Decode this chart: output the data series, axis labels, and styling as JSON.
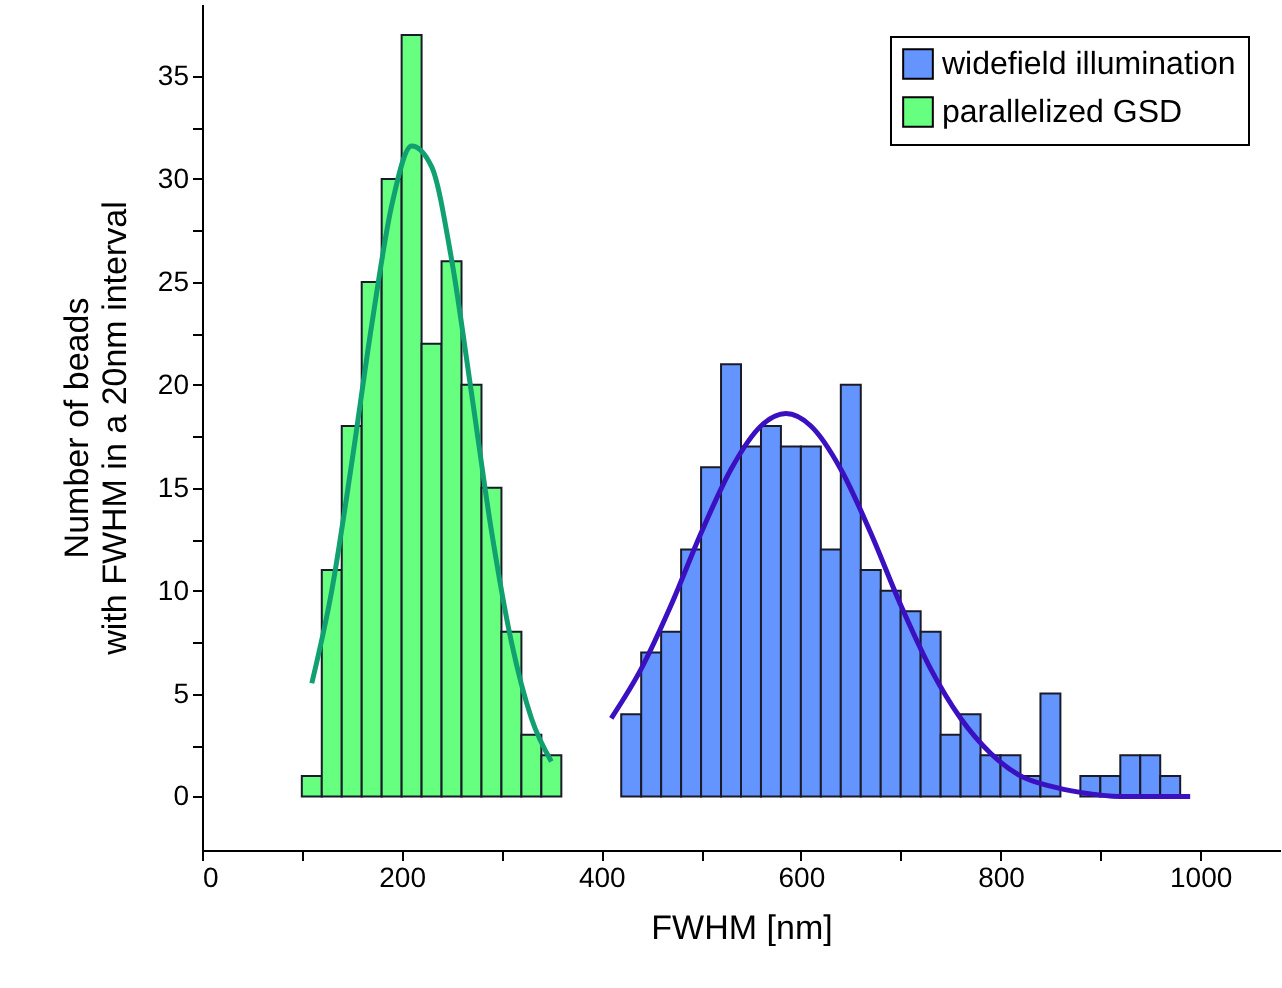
{
  "chart_data": {
    "type": "histogram",
    "xlabel": "FWHM [nm]",
    "ylabel": "Number of beads\nwith FWHM in a 20nm interval",
    "xlim": [
      0,
      1080
    ],
    "ylim": [
      -2.6,
      38.5
    ],
    "xticks": [
      0,
      {
        "value": 100,
        "label": null
      },
      200,
      {
        "value": 300,
        "label": null
      },
      400,
      {
        "value": 500,
        "label": null
      },
      600,
      {
        "value": 700,
        "label": null
      },
      800,
      {
        "value": 900,
        "label": null
      },
      1000
    ],
    "yticks": [
      0,
      {
        "value": 2.5,
        "label": null
      },
      5,
      {
        "value": 7.5,
        "label": null
      },
      10,
      {
        "value": 12.5,
        "label": null
      },
      15,
      {
        "value": 17.5,
        "label": null
      },
      20,
      {
        "value": 22.5,
        "label": null
      },
      25,
      {
        "value": 27.5,
        "label": null
      },
      30,
      {
        "value": 32.5,
        "label": null
      },
      35
    ],
    "grid": false,
    "legend": "top right",
    "series": [
      {
        "name": "widefield illumination",
        "color": "#6495ff",
        "bins": [
          400,
          420,
          440,
          460,
          480,
          500,
          520,
          540,
          560,
          580,
          600,
          620,
          640,
          660,
          680,
          700,
          720,
          740,
          760,
          780,
          800,
          820,
          840,
          860,
          880,
          900,
          920,
          940,
          960,
          980,
          1000
        ],
        "values": [
          0,
          4,
          7,
          8,
          12,
          16,
          21,
          17,
          18,
          17,
          17,
          12,
          20,
          11,
          10,
          9,
          8,
          3,
          4,
          2,
          2,
          1,
          5,
          0,
          1,
          1,
          2,
          2,
          1,
          0
        ]
      },
      {
        "name": "parallelized GSD",
        "color": "#66ff80",
        "bins": [
          100,
          120,
          140,
          160,
          180,
          200,
          220,
          240,
          260,
          280,
          300,
          320,
          340,
          360
        ],
        "values": [
          1,
          11,
          18,
          25,
          30,
          37,
          22,
          26,
          20,
          15,
          8,
          3,
          2
        ]
      },
      {
        "type": "line",
        "color": "#11a070",
        "x": [
          110,
          130,
          150,
          170,
          190,
          210,
          230,
          250,
          270,
          290,
          310,
          330,
          350
        ],
        "values": [
          5.5,
          10.0,
          16.2,
          22.9,
          28.7,
          31.6,
          30.6,
          26.1,
          19.6,
          12.9,
          7.5,
          3.8,
          1.7
        ]
      },
      {
        "type": "line",
        "color": "#3a10c0",
        "x": [
          410,
          440,
          470,
          500,
          530,
          560,
          585,
          610,
          640,
          670,
          700,
          730,
          760,
          790,
          820,
          850,
          880,
          920,
          960,
          990
        ],
        "values": [
          3.8,
          6.2,
          9.3,
          12.8,
          15.9,
          18.0,
          18.6,
          18.0,
          15.9,
          12.8,
          9.3,
          6.2,
          3.8,
          2.1,
          1.0,
          0.5,
          0.2,
          0.0,
          0.0,
          0.0
        ]
      }
    ]
  }
}
